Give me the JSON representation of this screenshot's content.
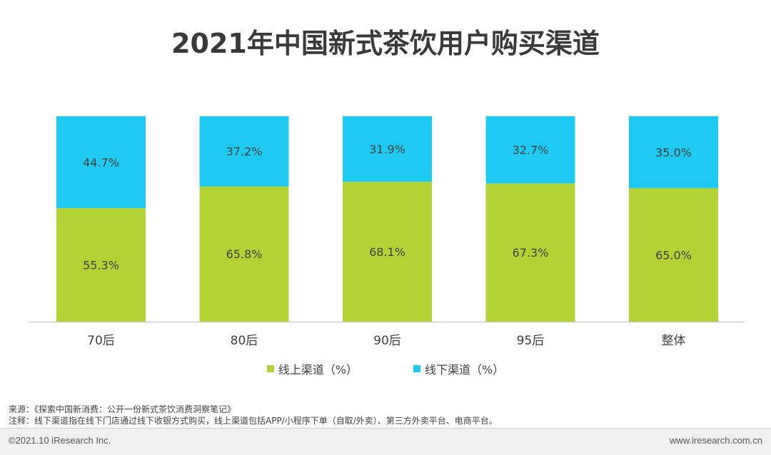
{
  "chart_data": {
    "type": "bar",
    "stacked": true,
    "title": "2021年中国新式茶饮用户购买渠道",
    "categories": [
      "70后",
      "80后",
      "90后",
      "95后",
      "整体"
    ],
    "series": [
      {
        "name": "线上渠道（%）",
        "values": [
          55.3,
          65.8,
          68.1,
          67.3,
          65.0
        ],
        "labels": [
          "55.3%",
          "65.8%",
          "68.1%",
          "67.3%",
          "65.0%"
        ],
        "color": "#b2d235"
      },
      {
        "name": "线下渠道（%）",
        "values": [
          44.7,
          37.2,
          31.9,
          32.7,
          35.0
        ],
        "labels": [
          "44.7%",
          "37.2%",
          "31.9%",
          "32.7%",
          "35.0%"
        ],
        "color": "#1ecaf2"
      }
    ],
    "ylim": [
      0,
      100
    ],
    "grid": false,
    "legend_position": "bottom"
  },
  "notes": {
    "source": "来源：《探索中国新消费：公开一份新式茶饮消费洞察笔记》",
    "note": "注释：线下渠道指在线下门店通过线下收银方式购买，线上渠道包括APP/小程序下单（自取/外卖）、第三方外卖平台、电商平台。"
  },
  "footer": {
    "copyright": "©2021.10 iResearch Inc.",
    "website": "www.iresearch.com.cn"
  }
}
